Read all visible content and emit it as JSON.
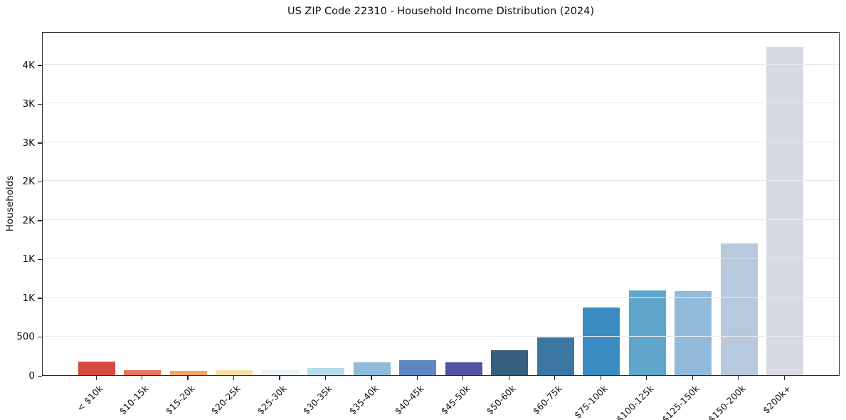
{
  "header": {
    "title": "US ZIP Code 22310 - Household Income Distribution (2024)"
  },
  "chart_data": {
    "type": "bar",
    "title": "US ZIP Code 22310 - Household Income Distribution (2024)",
    "xlabel": "",
    "ylabel": "Households",
    "categories": [
      "< $10k",
      "$10-15k",
      "$15-20k",
      "$20-25k",
      "$25-30k",
      "$30-35k",
      "$35-40k",
      "$40-45k",
      "$45-50k",
      "$50-60k",
      "$60-75k",
      "$75-100k",
      "$100-125k",
      "$125-150k",
      "$150-200k",
      "$200k+"
    ],
    "values": [
      170,
      68,
      57,
      66,
      63,
      88,
      165,
      190,
      162,
      320,
      490,
      872,
      1090,
      1078,
      1700,
      4230
    ],
    "bar_colors": [
      "#d6493f",
      "#e8765b",
      "#f2a65a",
      "#f7e0a4",
      "#e8f2f6",
      "#b5dcea",
      "#8fbad9",
      "#5f87c3",
      "#5551a2",
      "#355f7c",
      "#3b77a2",
      "#3a8cc3",
      "#60a6cc",
      "#92badb",
      "#b8c9de",
      "#d8dae6"
    ],
    "yticks": {
      "values": [
        0,
        500,
        1000,
        1500,
        2000,
        2500,
        3000,
        3500,
        4000
      ],
      "labels": [
        "0",
        "500",
        "1K",
        "1K",
        "2K",
        "2K",
        "3K",
        "3K",
        "4K"
      ]
    },
    "ylim": [
      0,
      4430
    ],
    "grid": "horizontal",
    "grid_color": "#e9e9ee",
    "legend": "none",
    "x_tick_rotation_deg": 45
  },
  "colors": {
    "background": "#ffffff",
    "spine": "#2a2a2a",
    "text": "#111111"
  }
}
